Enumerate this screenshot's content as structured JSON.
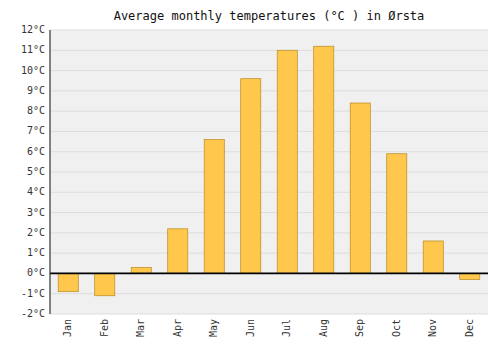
{
  "chart_data": {
    "type": "bar",
    "title": "Average monthly temperatures (°C ) in Ørsta",
    "categories": [
      "Jan",
      "Feb",
      "Mar",
      "Apr",
      "May",
      "Jun",
      "Jul",
      "Aug",
      "Sep",
      "Oct",
      "Nov",
      "Dec"
    ],
    "values": [
      -0.9,
      -1.1,
      0.3,
      2.2,
      6.6,
      9.6,
      11.0,
      11.2,
      8.4,
      5.9,
      1.6,
      -0.3
    ],
    "color": "#FFC84C",
    "ylim": [
      -2,
      12
    ],
    "yticks": [
      {
        "value": -2,
        "label": "-2°C"
      },
      {
        "value": -1,
        "label": "-1°C"
      },
      {
        "value": 0,
        "label": "0°C"
      },
      {
        "value": 1,
        "label": "1°C"
      },
      {
        "value": 2,
        "label": "2°C"
      },
      {
        "value": 3,
        "label": "3°C"
      },
      {
        "value": 4,
        "label": "4°C"
      },
      {
        "value": 5,
        "label": "5°C"
      },
      {
        "value": 6,
        "label": "6°C"
      },
      {
        "value": 7,
        "label": "7°C"
      },
      {
        "value": 8,
        "label": "8°C"
      },
      {
        "value": 9,
        "label": "9°C"
      },
      {
        "value": 10,
        "label": "10°C"
      },
      {
        "value": 11,
        "label": "11°C"
      },
      {
        "value": 12,
        "label": "12°C"
      }
    ],
    "grid": true
  }
}
